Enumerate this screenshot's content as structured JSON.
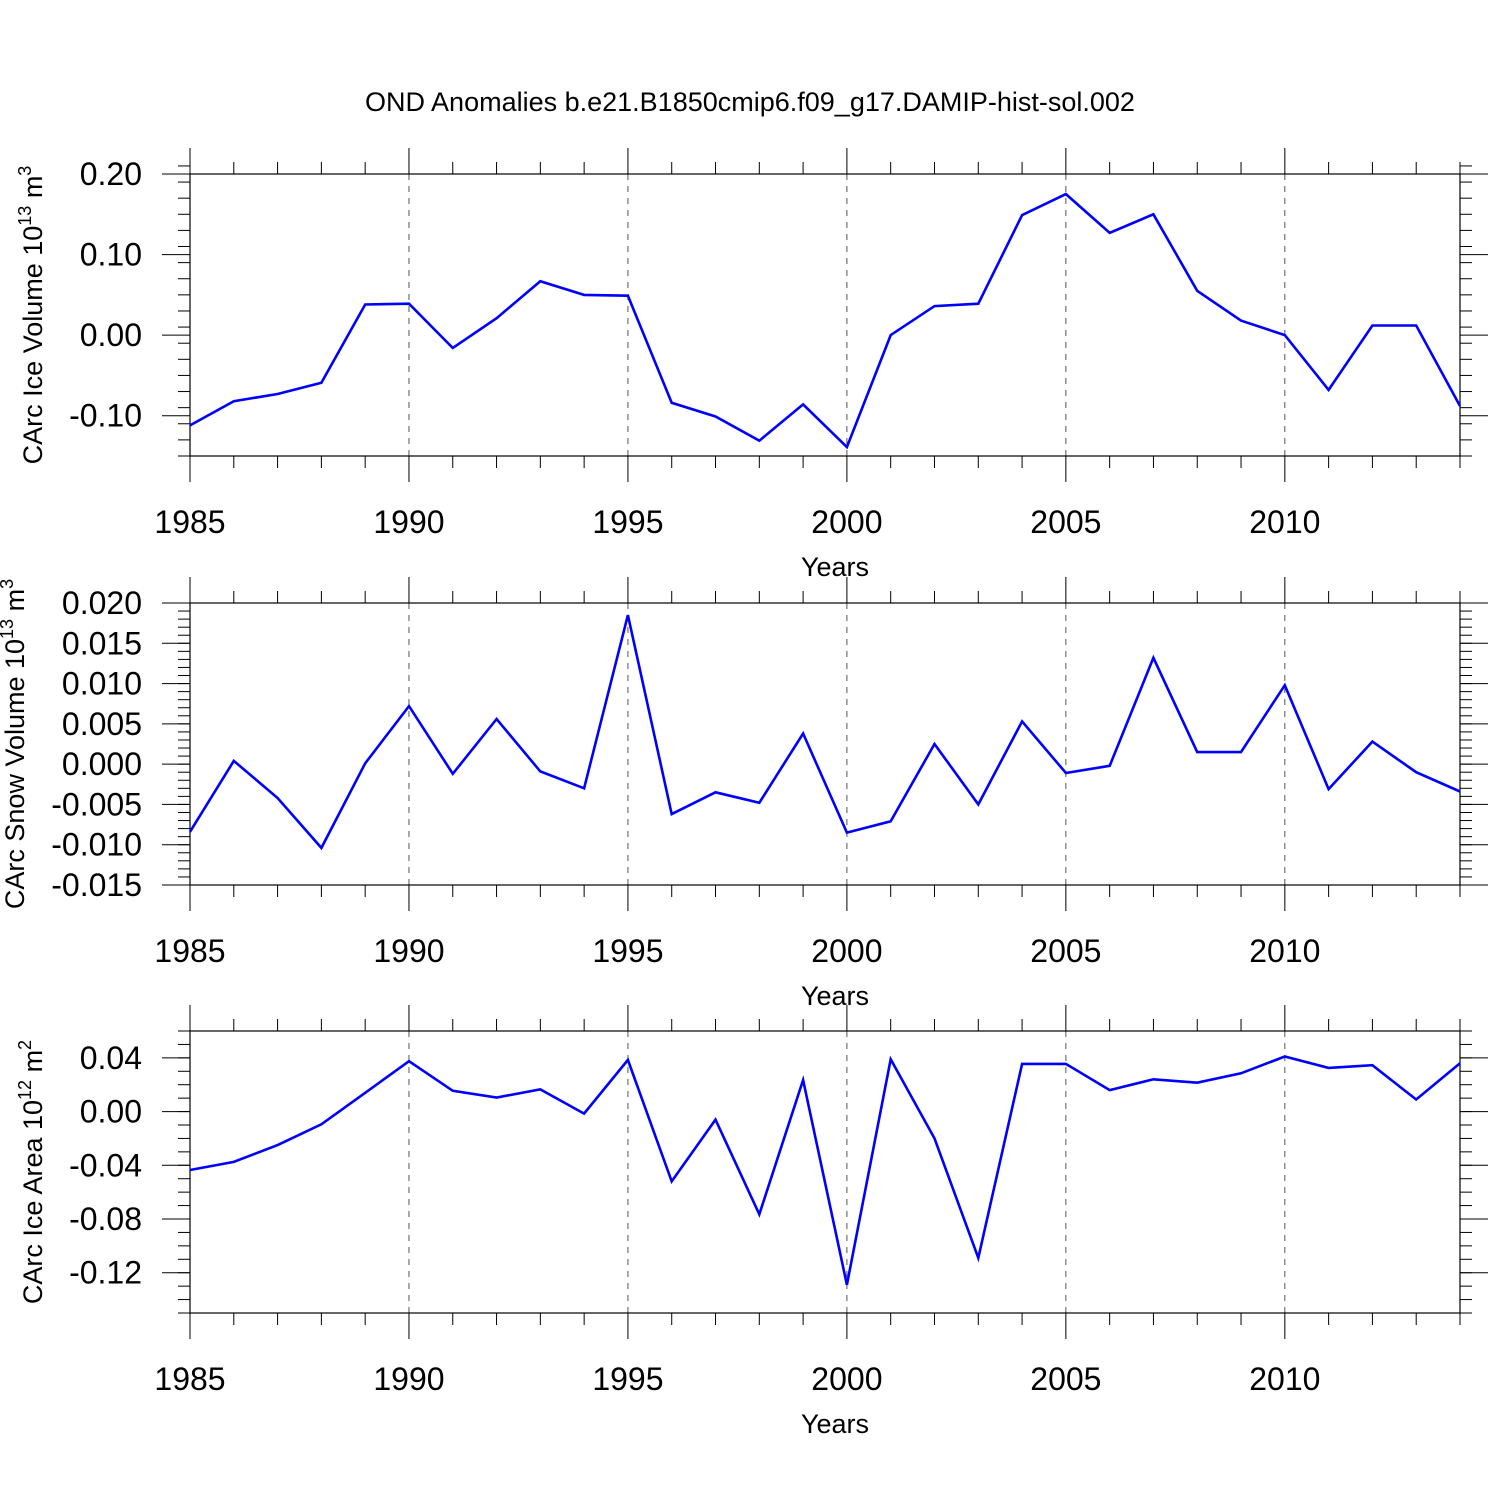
{
  "title": "OND Anomalies b.e21.B1850cmip6.f09_g17.DAMIP-hist-sol.002",
  "colors": {
    "line": "#0000ff",
    "axis": "#000000",
    "grid": "#555555"
  },
  "chart_data": [
    {
      "type": "line",
      "ylabel_main": "CArc Ice Volume 10",
      "ylabel_exp": "13",
      "ylabel_unit": " m",
      "ylabel_unit_exp": "3",
      "xlabel": "Years",
      "xlim": [
        1985,
        2014
      ],
      "ylim": [
        -0.15,
        0.2
      ],
      "x_major_ticks": [
        1985,
        1990,
        1995,
        2000,
        2005,
        2010
      ],
      "x_tick_labels": [
        "1985",
        "1990",
        "1995",
        "2000",
        "2005",
        "2010"
      ],
      "y_major_ticks": [
        0.2,
        0.1,
        0.0,
        -0.1
      ],
      "y_tick_labels": [
        "0.20",
        "0.10",
        "0.00",
        "-0.10"
      ],
      "y_minor_step": 0.02,
      "vertical_gridlines": [
        1990,
        1995,
        2000,
        2005,
        2010
      ],
      "x": [
        1985,
        1986,
        1987,
        1988,
        1989,
        1990,
        1991,
        1992,
        1993,
        1994,
        1995,
        1996,
        1997,
        1998,
        1999,
        2000,
        2001,
        2002,
        2003,
        2004,
        2005,
        2006,
        2007,
        2008,
        2009,
        2010,
        2011,
        2012,
        2013,
        2014
      ],
      "values": [
        -0.112,
        -0.082,
        -0.073,
        -0.059,
        0.038,
        0.039,
        -0.016,
        0.021,
        0.067,
        0.05,
        0.049,
        -0.084,
        -0.101,
        -0.131,
        -0.086,
        -0.139,
        0.0,
        0.036,
        0.039,
        0.149,
        0.175,
        0.127,
        0.15,
        0.055,
        0.018,
        0.0,
        -0.068,
        0.012,
        0.012,
        -0.088
      ]
    },
    {
      "type": "line",
      "ylabel_main": "CArc Snow Volume 10",
      "ylabel_exp": "13",
      "ylabel_unit": " m",
      "ylabel_unit_exp": "3",
      "xlabel": "Years",
      "xlim": [
        1985,
        2014
      ],
      "ylim": [
        -0.015,
        0.02
      ],
      "x_major_ticks": [
        1985,
        1990,
        1995,
        2000,
        2005,
        2010
      ],
      "x_tick_labels": [
        "1985",
        "1990",
        "1995",
        "2000",
        "2005",
        "2010"
      ],
      "y_major_ticks": [
        0.02,
        0.015,
        0.01,
        0.005,
        0.0,
        -0.005,
        -0.01,
        -0.015
      ],
      "y_tick_labels": [
        "0.020",
        "0.015",
        "0.010",
        "0.005",
        "0.000",
        "-0.005",
        "-0.010",
        "-0.015"
      ],
      "y_minor_step": 0.001,
      "vertical_gridlines": [
        1990,
        1995,
        2000,
        2005,
        2010
      ],
      "x": [
        1985,
        1986,
        1987,
        1988,
        1989,
        1990,
        1991,
        1992,
        1993,
        1994,
        1995,
        1996,
        1997,
        1998,
        1999,
        2000,
        2001,
        2002,
        2003,
        2004,
        2005,
        2006,
        2007,
        2008,
        2009,
        2010,
        2011,
        2012,
        2013,
        2014
      ],
      "values": [
        -0.0084,
        0.0004,
        -0.0042,
        -0.0104,
        0.0001,
        0.0072,
        -0.0012,
        0.0056,
        -0.0009,
        -0.003,
        0.0185,
        -0.0062,
        -0.0035,
        -0.0048,
        0.0038,
        -0.0085,
        -0.0071,
        0.0025,
        -0.005,
        0.0053,
        -0.0011,
        -0.0002,
        0.0132,
        0.0015,
        0.0015,
        0.0098,
        -0.0031,
        0.0028,
        -0.001,
        -0.0034
      ]
    },
    {
      "type": "line",
      "ylabel_main": "CArc Ice Area 10",
      "ylabel_exp": "12",
      "ylabel_unit": " m",
      "ylabel_unit_exp": "2",
      "xlabel": "Years",
      "xlim": [
        1985,
        2014
      ],
      "ylim": [
        -0.15,
        0.06
      ],
      "x_major_ticks": [
        1985,
        1990,
        1995,
        2000,
        2005,
        2010
      ],
      "x_tick_labels": [
        "1985",
        "1990",
        "1995",
        "2000",
        "2005",
        "2010"
      ],
      "y_major_ticks": [
        0.04,
        0.0,
        -0.04,
        -0.08,
        -0.12
      ],
      "y_tick_labels": [
        "0.04",
        "0.00",
        "-0.04",
        "-0.08",
        "-0.12"
      ],
      "y_minor_step": 0.01,
      "vertical_gridlines": [
        1990,
        1995,
        2000,
        2005,
        2010
      ],
      "x": [
        1985,
        1986,
        1987,
        1988,
        1989,
        1990,
        1991,
        1992,
        1993,
        1994,
        1995,
        1996,
        1997,
        1998,
        1999,
        2000,
        2001,
        2002,
        2003,
        2004,
        2005,
        2006,
        2007,
        2008,
        2009,
        2010,
        2011,
        2012,
        2013,
        2014
      ],
      "values": [
        -0.0435,
        -0.0375,
        -0.025,
        -0.0095,
        0.014,
        0.0375,
        0.0155,
        0.0105,
        0.0165,
        -0.0015,
        0.0385,
        -0.052,
        -0.006,
        -0.0765,
        0.0235,
        -0.129,
        0.039,
        -0.02,
        -0.109,
        0.0355,
        0.0355,
        0.016,
        0.024,
        0.0215,
        0.0285,
        0.041,
        0.0325,
        0.0345,
        0.009,
        0.036
      ]
    }
  ]
}
